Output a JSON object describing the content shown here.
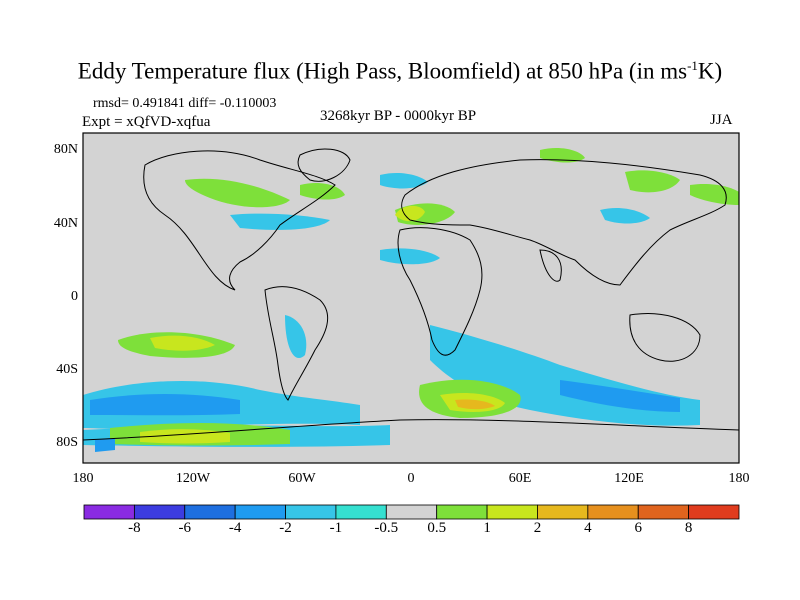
{
  "title": {
    "main": "Eddy Temperature flux (High Pass, Bloomfield) at 850 hPa (in ms",
    "sup": "-1",
    "tail": "K)"
  },
  "stats": "rmsd= 0.491841 diff= -0.110003",
  "expt": "Expt = xQfVD-xqfua",
  "period": "3268kyr BP - 0000kyr BP",
  "season": "JJA",
  "axes": {
    "y_ticks": [
      "80N",
      "40N",
      "0",
      "40S",
      "80S"
    ],
    "x_ticks": [
      "180",
      "120W",
      "60W",
      "0",
      "60E",
      "120E",
      "180"
    ]
  },
  "colorbar": {
    "labels": [
      "-8",
      "-6",
      "-4",
      "-2",
      "-1",
      "-0.5",
      "0.5",
      "1",
      "2",
      "4",
      "6",
      "8"
    ],
    "colors": [
      "#8a2be2",
      "#3c3ce0",
      "#1e6fe0",
      "#1f9bf0",
      "#36c5e8",
      "#35e0d0",
      "#d3d3d3",
      "#7ee03a",
      "#c8e61e",
      "#e6b81e",
      "#e6901e",
      "#e0641e",
      "#e03c1e"
    ]
  },
  "map": {
    "background": "#d3d3d3",
    "coastline": "#000000"
  }
}
